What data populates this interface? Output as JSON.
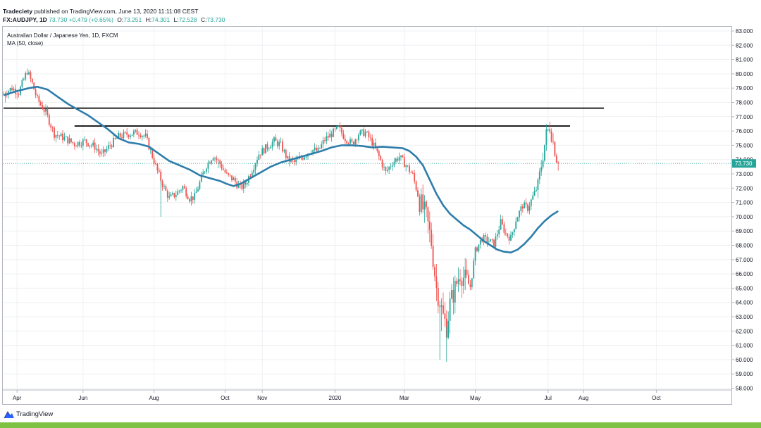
{
  "header": {
    "author": "Tradeciety",
    "published_text": "published on TradingView.com, June 13, 2020 11:11:08 CEST",
    "symbol": "FX:AUDJPY, 1D",
    "last": "73.730",
    "change": "+0.479 (+0.65%)",
    "o_label": "O:",
    "o_value": "73.251",
    "h_label": "H:",
    "h_value": "74.301",
    "l_label": "L:",
    "l_value": "72.528",
    "c_label": "C:",
    "c_value": "73.730"
  },
  "legend": {
    "instrument": "Australian Dollar / Japanese Yen, 1D, FXCM",
    "indicator": "MA (50, close)"
  },
  "footer": {
    "brand": "TradingView"
  },
  "colors": {
    "up": "#26a69a",
    "down": "#ef5350",
    "ma": "#2e7dab",
    "level": "#000000",
    "price_tag": "#26a69a",
    "footer_bar": "#7dc242"
  },
  "chart_data": {
    "type": "candlestick",
    "title": "Australian Dollar / Japanese Yen, 1D, FXCM",
    "xlabel": "",
    "ylabel": "",
    "ylim": [
      58.0,
      83.0
    ],
    "y_ticks": [
      "58.000",
      "59.000",
      "60.000",
      "61.000",
      "62.000",
      "63.000",
      "64.000",
      "65.000",
      "66.000",
      "67.000",
      "68.000",
      "69.000",
      "70.000",
      "71.000",
      "72.000",
      "73.000",
      "74.000",
      "75.000",
      "76.000",
      "77.000",
      "78.000",
      "79.000",
      "80.000",
      "81.000",
      "82.000",
      "83.000"
    ],
    "x_ticks": [
      {
        "label": "Apr",
        "index": 8
      },
      {
        "label": "Jun",
        "index": 47
      },
      {
        "label": "Aug",
        "index": 89
      },
      {
        "label": "Oct",
        "index": 131
      },
      {
        "label": "Nov",
        "index": 153
      },
      {
        "label": "2020",
        "index": 196
      },
      {
        "label": "Mar",
        "index": 237
      },
      {
        "label": "May",
        "index": 279
      },
      {
        "label": "Jul",
        "index": 322
      },
      {
        "label": "Aug",
        "index": 343
      },
      {
        "label": "Oct",
        "index": 386
      }
    ],
    "last_index": 309,
    "current_price": 73.73,
    "current_price_label": "73.730",
    "price_path": [
      [
        0,
        78.6
      ],
      [
        5,
        79.0
      ],
      [
        9,
        78.7
      ],
      [
        14,
        80.2
      ],
      [
        17,
        79.3
      ],
      [
        20,
        78.2
      ],
      [
        25,
        77.3
      ],
      [
        30,
        75.8
      ],
      [
        36,
        75.5
      ],
      [
        42,
        75.1
      ],
      [
        48,
        75.3
      ],
      [
        54,
        74.9
      ],
      [
        58,
        74.3
      ],
      [
        63,
        75.0
      ],
      [
        68,
        75.6
      ],
      [
        74,
        75.8
      ],
      [
        80,
        75.9
      ],
      [
        84,
        75.6
      ],
      [
        87,
        74.6
      ],
      [
        91,
        73.2
      ],
      [
        95,
        72.0
      ],
      [
        98,
        71.3
      ],
      [
        102,
        71.6
      ],
      [
        106,
        72.1
      ],
      [
        110,
        71.3
      ],
      [
        113,
        71.4
      ],
      [
        117,
        72.7
      ],
      [
        120,
        73.6
      ],
      [
        124,
        74.3
      ],
      [
        128,
        73.7
      ],
      [
        132,
        72.9
      ],
      [
        136,
        72.6
      ],
      [
        140,
        72.0
      ],
      [
        143,
        72.3
      ],
      [
        147,
        73.3
      ],
      [
        151,
        74.4
      ],
      [
        156,
        74.9
      ],
      [
        160,
        75.3
      ],
      [
        164,
        75.0
      ],
      [
        168,
        74.0
      ],
      [
        172,
        73.8
      ],
      [
        177,
        74.2
      ],
      [
        182,
        74.7
      ],
      [
        186,
        74.6
      ],
      [
        190,
        75.4
      ],
      [
        194,
        75.8
      ],
      [
        198,
        76.2
      ],
      [
        202,
        75.5
      ],
      [
        206,
        75.1
      ],
      [
        210,
        75.8
      ],
      [
        214,
        75.9
      ],
      [
        218,
        75.2
      ],
      [
        222,
        74.2
      ],
      [
        226,
        73.1
      ],
      [
        230,
        73.8
      ],
      [
        234,
        74.2
      ],
      [
        238,
        73.6
      ],
      [
        242,
        72.9
      ],
      [
        246,
        71.1
      ],
      [
        250,
        70.0
      ],
      [
        253,
        68.2
      ],
      [
        256,
        65.0
      ],
      [
        258,
        64.1
      ],
      [
        260,
        63.0
      ],
      [
        262,
        62.3
      ],
      [
        264,
        63.9
      ],
      [
        267,
        65.0
      ],
      [
        270,
        66.1
      ],
      [
        273,
        65.6
      ],
      [
        276,
        65.1
      ],
      [
        279,
        67.6
      ],
      [
        283,
        68.5
      ],
      [
        287,
        68.3
      ],
      [
        290,
        68.1
      ],
      [
        294,
        69.6
      ],
      [
        297,
        68.8
      ],
      [
        300,
        68.5
      ],
      [
        303,
        69.8
      ],
      [
        307,
        70.8
      ],
      [
        310,
        70.6
      ],
      [
        313,
        71.4
      ],
      [
        316,
        72.2
      ],
      [
        319,
        74.3
      ],
      [
        321,
        75.8
      ],
      [
        323,
        76.3
      ],
      [
        325,
        75.2
      ],
      [
        327,
        74.1
      ],
      [
        328,
        73.73
      ]
    ],
    "ma": [
      [
        0,
        78.5
      ],
      [
        8,
        78.8
      ],
      [
        15,
        79.0
      ],
      [
        20,
        79.1
      ],
      [
        26,
        78.9
      ],
      [
        32,
        78.4
      ],
      [
        38,
        77.9
      ],
      [
        44,
        77.5
      ],
      [
        50,
        77.1
      ],
      [
        56,
        76.6
      ],
      [
        62,
        76.1
      ],
      [
        68,
        75.5
      ],
      [
        74,
        75.2
      ],
      [
        80,
        75.1
      ],
      [
        86,
        74.9
      ],
      [
        92,
        74.4
      ],
      [
        98,
        73.9
      ],
      [
        104,
        73.6
      ],
      [
        110,
        73.3
      ],
      [
        116,
        72.9
      ],
      [
        122,
        72.7
      ],
      [
        128,
        72.5
      ],
      [
        132,
        72.3
      ],
      [
        136,
        72.15
      ],
      [
        140,
        72.3
      ],
      [
        146,
        72.7
      ],
      [
        152,
        73.1
      ],
      [
        158,
        73.5
      ],
      [
        164,
        73.8
      ],
      [
        170,
        74.0
      ],
      [
        176,
        74.2
      ],
      [
        182,
        74.4
      ],
      [
        188,
        74.6
      ],
      [
        194,
        74.85
      ],
      [
        200,
        75.0
      ],
      [
        206,
        75.0
      ],
      [
        212,
        74.95
      ],
      [
        218,
        74.85
      ],
      [
        224,
        74.9
      ],
      [
        230,
        74.85
      ],
      [
        236,
        74.8
      ],
      [
        240,
        74.6
      ],
      [
        244,
        74.2
      ],
      [
        248,
        73.6
      ],
      [
        252,
        72.6
      ],
      [
        256,
        71.6
      ],
      [
        260,
        70.8
      ],
      [
        264,
        70.2
      ],
      [
        268,
        69.8
      ],
      [
        272,
        69.4
      ],
      [
        276,
        69.1
      ],
      [
        280,
        68.7
      ],
      [
        284,
        68.3
      ],
      [
        288,
        68.0
      ],
      [
        292,
        67.7
      ],
      [
        296,
        67.55
      ],
      [
        300,
        67.5
      ],
      [
        304,
        67.7
      ],
      [
        308,
        68.1
      ],
      [
        312,
        68.6
      ],
      [
        316,
        69.2
      ],
      [
        320,
        69.7
      ],
      [
        324,
        70.1
      ],
      [
        328,
        70.4
      ]
    ],
    "horizontal_levels": [
      {
        "price": 77.6,
        "from_index": 0,
        "to_index": 355
      },
      {
        "price": 76.35,
        "from_index": 42,
        "to_index": 335
      }
    ],
    "grid": true
  }
}
